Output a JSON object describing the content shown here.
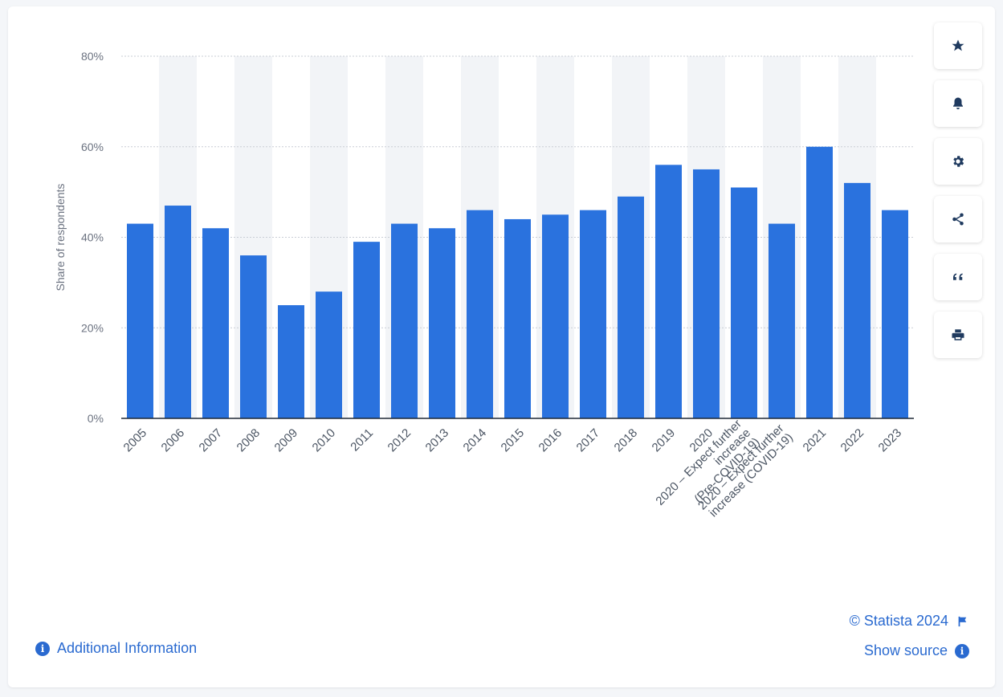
{
  "chart_data": {
    "type": "bar",
    "categories": [
      "2005",
      "2006",
      "2007",
      "2008",
      "2009",
      "2010",
      "2011",
      "2012",
      "2013",
      "2014",
      "2015",
      "2016",
      "2017",
      "2018",
      "2019",
      "2020",
      "2020 – Expect further increase (Pre-COVID-19)",
      "2020 – Expect further increase (COVID-19)",
      "2021",
      "2022",
      "2023"
    ],
    "values": [
      43,
      47,
      42,
      36,
      25,
      28,
      39,
      43,
      42,
      46,
      44,
      45,
      46,
      49,
      56,
      55,
      51,
      43,
      60,
      52,
      46
    ],
    "ylabel": "Share of respondents",
    "xlabel": "",
    "ylim": [
      0,
      80
    ],
    "yticks": [
      "0%",
      "20%",
      "40%",
      "60%",
      "80%"
    ],
    "grid": true,
    "bar_color": "#2a72de"
  },
  "tools": [
    {
      "name": "star-icon"
    },
    {
      "name": "bell-icon"
    },
    {
      "name": "gear-icon"
    },
    {
      "name": "share-icon"
    },
    {
      "name": "quote-icon"
    },
    {
      "name": "print-icon"
    }
  ],
  "footer": {
    "additional_info": "Additional Information",
    "credit": "© Statista 2024",
    "show_source": "Show source"
  },
  "colors": {
    "accent": "#2a6ad0",
    "stripe": "#f2f4f7"
  }
}
